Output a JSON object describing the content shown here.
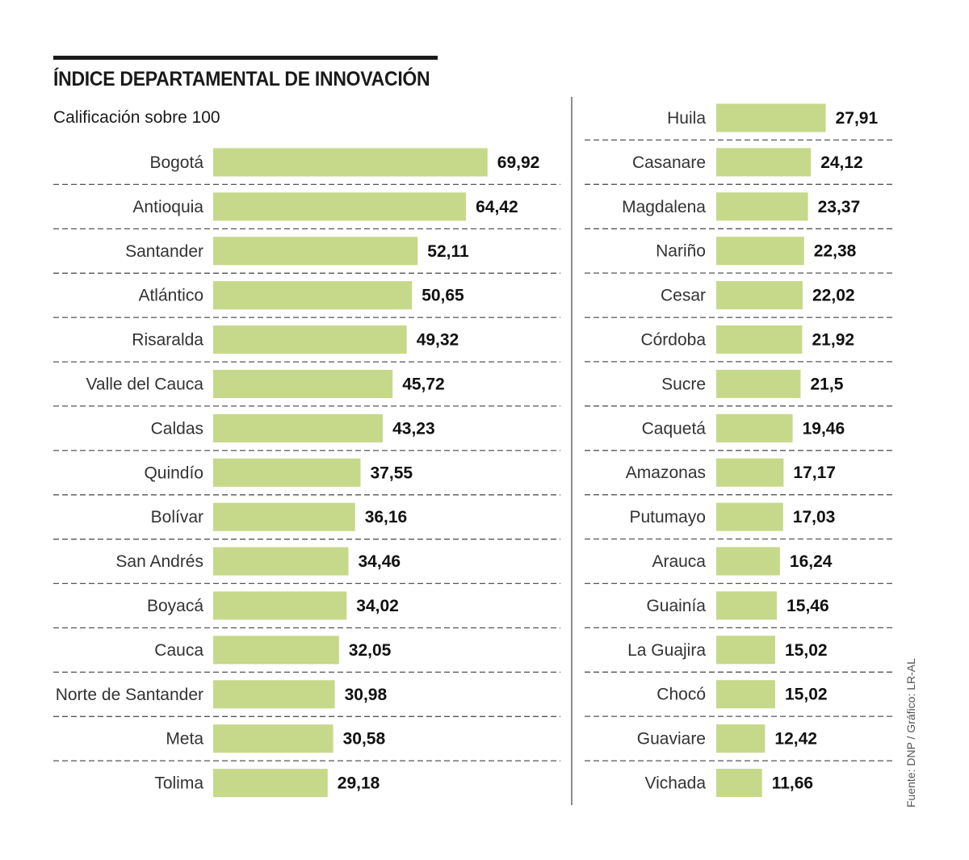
{
  "header": {
    "title": "ÍNDICE DEPARTAMENTAL DE INNOVACIÓN",
    "subtitle": "Calificación sobre 100"
  },
  "source": "Fuente: DNP / Gráfico: LR-AL",
  "colors": {
    "bar": "#c6d98a",
    "rule": "#1a1a1a"
  },
  "chart_data": {
    "type": "bar",
    "orientation": "horizontal",
    "title": "ÍNDICE DEPARTAMENTAL DE INNOVACIÓN",
    "subtitle": "Calificación sobre 100",
    "xlim": [
      0,
      100
    ],
    "columns": [
      {
        "categories": [
          "Bogotá",
          "Antioquia",
          "Santander",
          "Atlántico",
          "Risaralda",
          "Valle del Cauca",
          "Caldas",
          "Quindío",
          "Bolívar",
          "San Andrés",
          "Boyacá",
          "Cauca",
          "Norte de Santander",
          "Meta",
          "Tolima"
        ],
        "values": [
          69.92,
          64.42,
          52.11,
          50.65,
          49.32,
          45.72,
          43.23,
          37.55,
          36.16,
          34.46,
          34.02,
          32.05,
          30.98,
          30.58,
          29.18
        ],
        "labels": [
          "69,92",
          "64,42",
          "52,11",
          "50,65",
          "49,32",
          "45,72",
          "43,23",
          "37,55",
          "36,16",
          "34,46",
          "34,02",
          "32,05",
          "30,98",
          "30,58",
          "29,18"
        ]
      },
      {
        "categories": [
          "Huila",
          "Casanare",
          "Magdalena",
          "Nariño",
          "Cesar",
          "Córdoba",
          "Sucre",
          "Caquetá",
          "Amazonas",
          "Putumayo",
          "Arauca",
          "Guainía",
          "La Guajira",
          "Chocó",
          "Guaviare",
          "Vichada"
        ],
        "values": [
          27.91,
          24.12,
          23.37,
          22.38,
          22.02,
          21.92,
          21.5,
          19.46,
          17.17,
          17.03,
          16.24,
          15.46,
          15.02,
          15.02,
          12.42,
          11.66
        ],
        "labels": [
          "27,91",
          "24,12",
          "23,37",
          "22,38",
          "22,02",
          "21,92",
          "21,5",
          "19,46",
          "17,17",
          "17,03",
          "16,24",
          "15,46",
          "15,02",
          "15,02",
          "12,42",
          "11,66"
        ]
      }
    ]
  }
}
